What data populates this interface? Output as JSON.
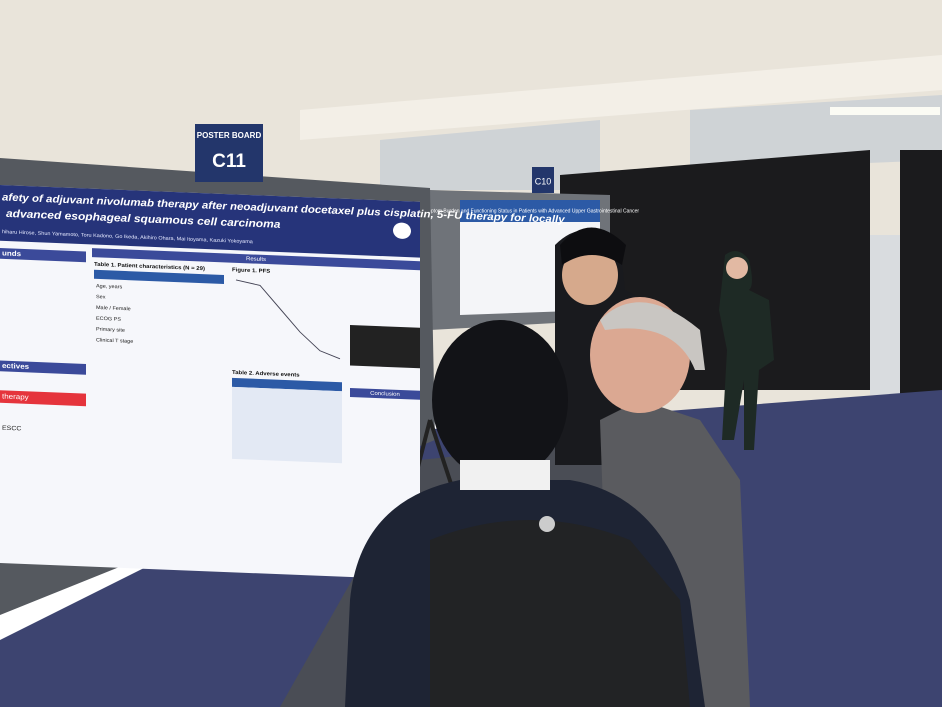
{
  "signs": {
    "board_label": "POSTER BOARD",
    "board_number": "C11",
    "next_board_number": "C10"
  },
  "poster": {
    "title_line1": "afety of adjuvant nivolumab therapy after neoadjuvant docetaxel plus cisplatin, 5-FU therapy for locally",
    "title_line2": "advanced esophageal squamous cell carcinoma",
    "authors": "hiharu Hirose, Shun Yamamoto, Toru Kadono, Go Ikeda, Akihiro Ohara, Mai Itoyama, Kazuki Yokoyama",
    "results_heading": "Results",
    "table1_title": "Table 1. Patient characteristics (N = 29)",
    "table1_rows": [
      "Age, years",
      "Sex",
      "Male / Female",
      "ECOG PS",
      "Primary site",
      "Clinical T stage"
    ],
    "figure1_title": "Figure 1. PFS",
    "table2_title": "Table 2. Adverse events",
    "conclusion_heading": "Conclusion",
    "left_sections": [
      "unds",
      "ectives",
      "therapy",
      "ESCC"
    ]
  },
  "second_poster": {
    "title": "Symptom Burden and Functioning Status in Patients with Advanced Upper Gastrointestinal Cancer"
  }
}
